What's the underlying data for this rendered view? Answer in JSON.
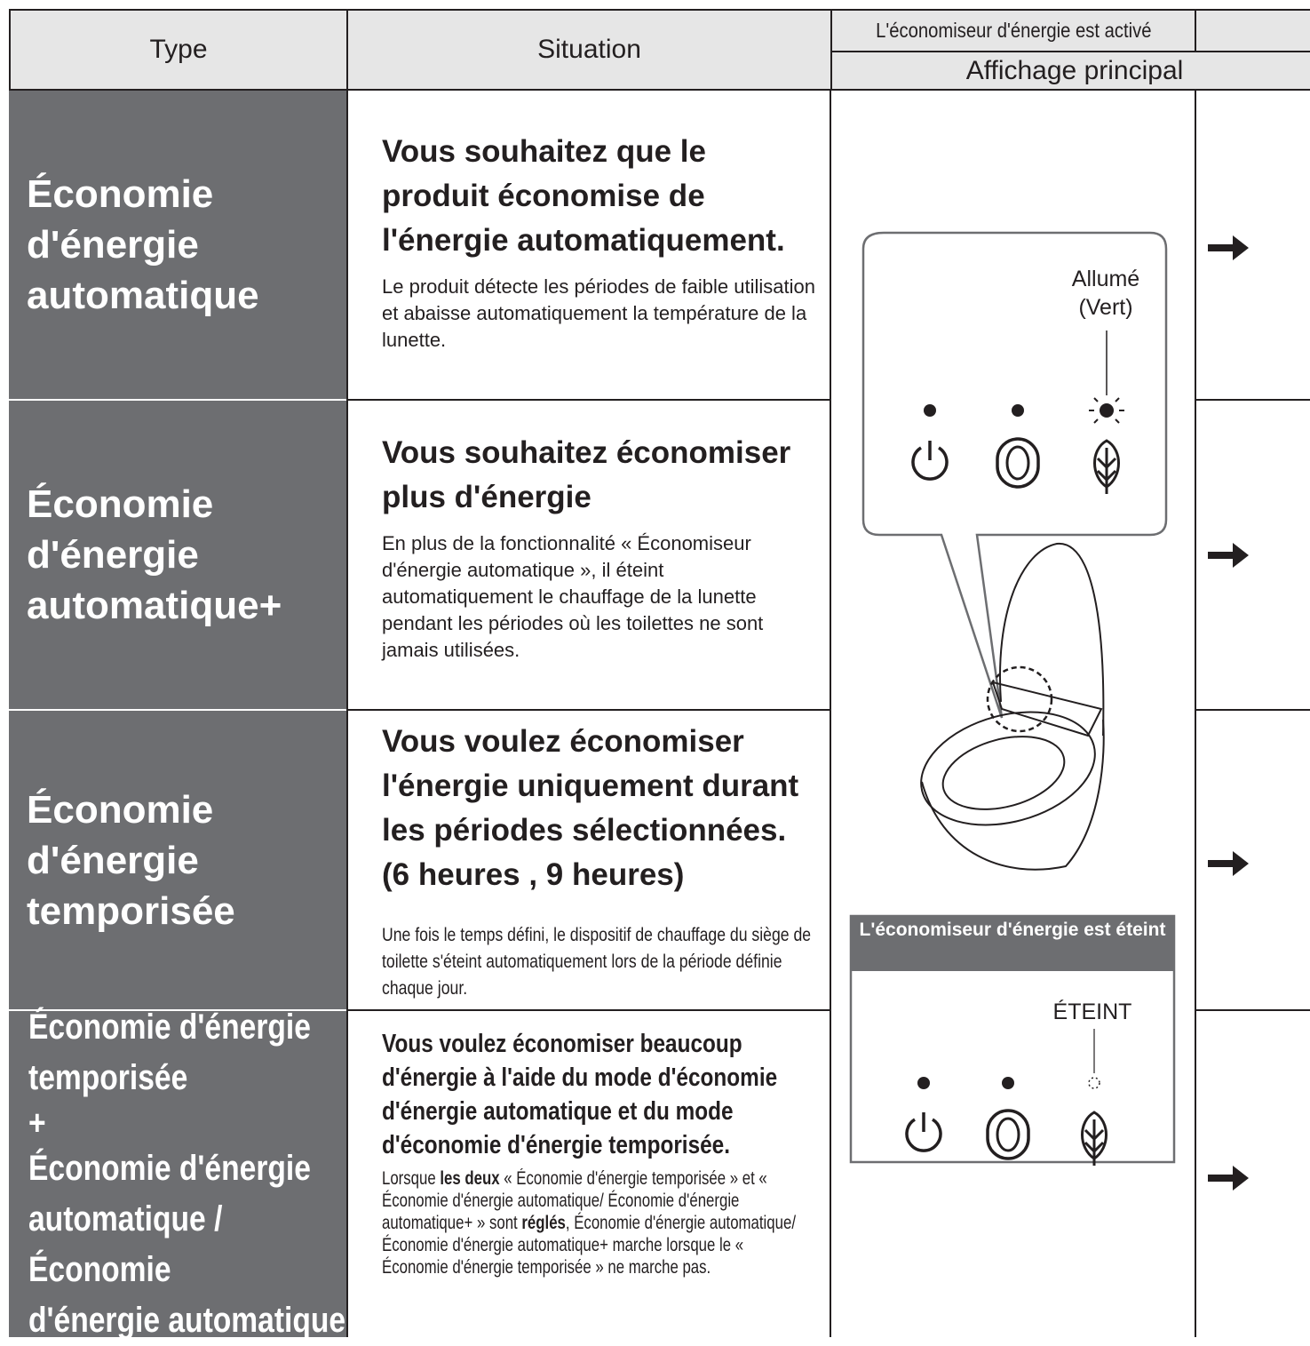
{
  "header": {
    "type": "Type",
    "situation": "Situation",
    "activated": "L'économiseur d'énergie est activé",
    "main_display": "Affichage principal"
  },
  "rows": [
    {
      "type": "Économie d'énergie automatique",
      "heading": "Vous souhaitez que le produit économise de l'énergie automatiquement.",
      "description": "Le produit détecte les périodes de faible utilisation et abaisse automatiquement la température de la lunette."
    },
    {
      "type": "Économie d'énergie automatique+",
      "heading": "Vous souhaitez économiser plus d'énergie",
      "description": "En plus de la fonctionnalité « Économiseur d'énergie automatique », il éteint automatiquement le chauffage de la lunette pendant les périodes où les toilettes ne sont jamais utilisées."
    },
    {
      "type": "Économie d'énergie temporisée",
      "heading": "Vous voulez économiser l'énergie uniquement durant les périodes sélectionnées. (6 heures , 9 heures)",
      "description": "Une fois le temps défini, le dispositif de chauffage du siège de toilette s'éteint automatiquement lors de la période définie chaque jour."
    },
    {
      "type": [
        "Économie d'énergie",
        "temporisée",
        "+",
        "Économie d'énergie",
        "automatique / Économie",
        "d'énergie automatique+"
      ],
      "heading": "Vous voulez économiser beaucoup d'énergie à l'aide du mode d'économie d'énergie automatique et du mode d'économie d'énergie temporisée.",
      "description": [
        "Lorsque ",
        "les deux",
        " « Économie d'énergie temporisée » et « Économie d'énergie automatique/ Économie d'énergie automatique+ » sont ",
        "réglés",
        ", Économie d'énergie automatique/Économie d'énergie automatique+ marche lorsque le « Économie d'énergie temporisée » ne marche pas."
      ]
    }
  ],
  "illustration": {
    "on_label": [
      "Allumé",
      "(Vert)"
    ],
    "off_title": "L'économiseur d'énergie est éteint",
    "off_label": "ÉTEINT"
  }
}
